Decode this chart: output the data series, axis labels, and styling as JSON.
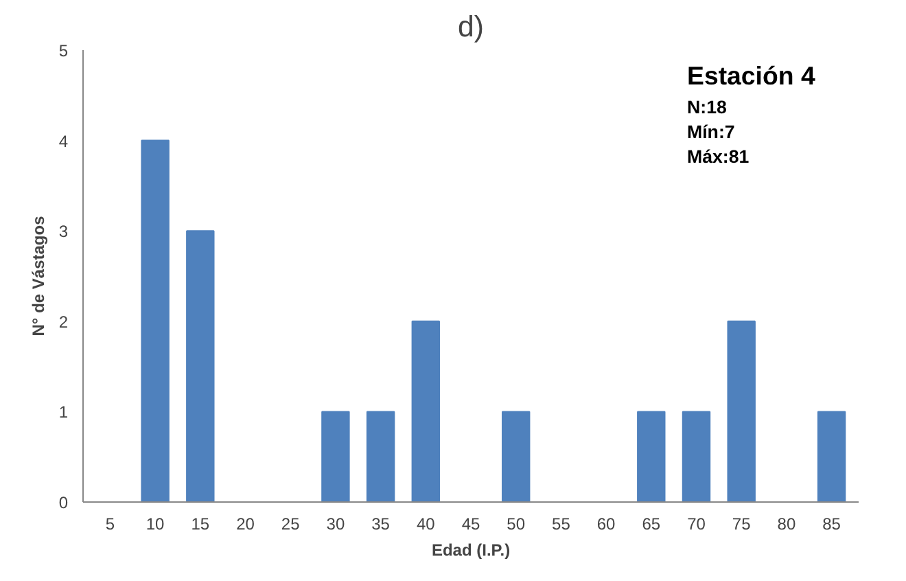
{
  "chart_data": {
    "type": "bar",
    "title": "d)",
    "xlabel": "Edad (I.P.)",
    "ylabel": "N° de Vástagos",
    "categories": [
      "5",
      "10",
      "15",
      "20",
      "25",
      "30",
      "35",
      "40",
      "45",
      "50",
      "55",
      "60",
      "65",
      "70",
      "75",
      "80",
      "85"
    ],
    "values": [
      0,
      4,
      3,
      0,
      0,
      1,
      1,
      2,
      0,
      1,
      0,
      0,
      1,
      1,
      2,
      0,
      1
    ],
    "color": "#4f81bd",
    "ylim": [
      0,
      5
    ],
    "yticks": [
      0,
      1,
      2,
      3,
      4,
      5
    ],
    "grid": false,
    "annotations": [
      "Estación 4",
      "N:18",
      "Mín:7",
      "Máx:81"
    ]
  }
}
